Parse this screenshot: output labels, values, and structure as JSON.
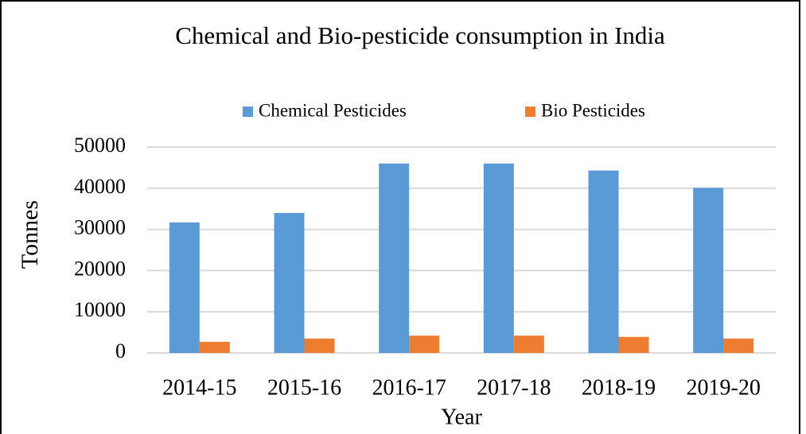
{
  "chart_data": {
    "type": "bar",
    "title": "Chemical and Bio-pesticide consumption in India",
    "x_label": "Year",
    "y_label": "Tonnes",
    "categories": [
      "2014-15",
      "2015-16",
      "2016-17",
      "2017-18",
      "2018-19",
      "2019-20"
    ],
    "series": [
      {
        "name": "Chemical Pesticides",
        "color": "#5b9bd5",
        "values": [
          31700,
          34000,
          46000,
          46000,
          44300,
          40100
        ]
      },
      {
        "name": "Bio Pesticides",
        "color": "#ed7d31",
        "values": [
          2700,
          3500,
          4200,
          4200,
          3900,
          3500
        ]
      }
    ],
    "ylim": [
      0,
      50000
    ],
    "yticks": [
      0,
      10000,
      20000,
      30000,
      40000,
      50000
    ],
    "grid": true,
    "legend": "top"
  }
}
